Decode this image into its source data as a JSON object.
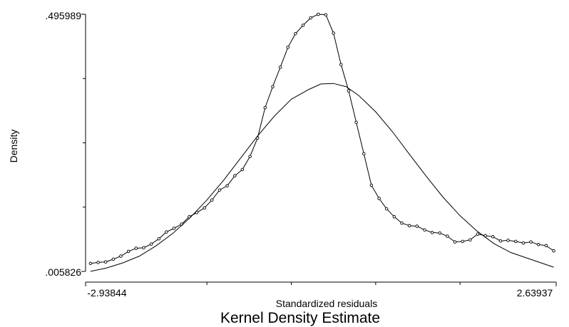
{
  "chart_data": {
    "type": "line",
    "title": "Kernel Density Estimate",
    "xlabel": "Standardized residuals",
    "ylabel": "Density",
    "xlim": [
      -2.93844,
      2.63937
    ],
    "ylim": [
      0.005826,
      0.495989
    ],
    "x_tick_labels": [
      "-2.93844",
      "2.63937"
    ],
    "y_tick_labels": [
      ".495989",
      ".005826"
    ],
    "x_minor_ticks": [
      -1.5,
      -0.5,
      0.5,
      1.5
    ],
    "y_minor_ticks": [
      0.1284,
      0.2509,
      0.3735
    ],
    "grid": false,
    "legend": "none",
    "series": [
      {
        "style": "line-with-markers",
        "x": [
          -2.88,
          -2.79,
          -2.7,
          -2.61,
          -2.52,
          -2.43,
          -2.34,
          -2.25,
          -2.16,
          -2.07,
          -1.98,
          -1.89,
          -1.8,
          -1.71,
          -1.62,
          -1.53,
          -1.44,
          -1.35,
          -1.26,
          -1.17,
          -1.08,
          -0.99,
          -0.9,
          -0.81,
          -0.72,
          -0.63,
          -0.54,
          -0.45,
          -0.36,
          -0.27,
          -0.18,
          -0.09,
          0.0,
          0.09,
          0.18,
          0.27,
          0.36,
          0.45,
          0.54,
          0.63,
          0.72,
          0.81,
          0.9,
          0.99,
          1.08,
          1.17,
          1.26,
          1.35,
          1.44,
          1.53,
          1.62,
          1.71,
          1.8,
          1.89,
          1.98,
          2.07,
          2.16,
          2.25,
          2.34,
          2.43,
          2.52,
          2.61
        ],
        "y": [
          0.021,
          0.023,
          0.024,
          0.029,
          0.035,
          0.044,
          0.05,
          0.051,
          0.058,
          0.068,
          0.081,
          0.088,
          0.096,
          0.11,
          0.118,
          0.127,
          0.142,
          0.161,
          0.169,
          0.188,
          0.2,
          0.225,
          0.26,
          0.318,
          0.358,
          0.395,
          0.433,
          0.459,
          0.475,
          0.489,
          0.496,
          0.495,
          0.46,
          0.4,
          0.35,
          0.29,
          0.23,
          0.17,
          0.145,
          0.125,
          0.11,
          0.098,
          0.093,
          0.092,
          0.085,
          0.08,
          0.079,
          0.073,
          0.062,
          0.063,
          0.066,
          0.077,
          0.074,
          0.072,
          0.064,
          0.065,
          0.063,
          0.06,
          0.062,
          0.057,
          0.055,
          0.045
        ]
      },
      {
        "style": "line",
        "x": [
          -2.88,
          -2.7,
          -2.5,
          -2.3,
          -2.1,
          -1.9,
          -1.7,
          -1.5,
          -1.3,
          -1.1,
          -0.9,
          -0.7,
          -0.5,
          -0.3,
          -0.15,
          0.0,
          0.15,
          0.3,
          0.5,
          0.7,
          0.9,
          1.1,
          1.3,
          1.5,
          1.7,
          1.9,
          2.1,
          2.3,
          2.5,
          2.61
        ],
        "y": [
          0.006,
          0.012,
          0.022,
          0.035,
          0.055,
          0.079,
          0.108,
          0.142,
          0.18,
          0.222,
          0.264,
          0.302,
          0.334,
          0.352,
          0.363,
          0.364,
          0.358,
          0.341,
          0.31,
          0.272,
          0.229,
          0.187,
          0.147,
          0.112,
          0.083,
          0.059,
          0.042,
          0.031,
          0.02,
          0.014
        ]
      }
    ]
  }
}
